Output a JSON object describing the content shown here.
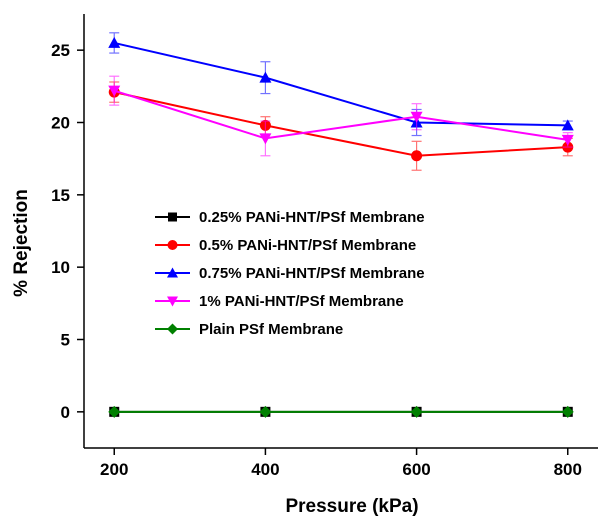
{
  "chart_data": {
    "type": "line",
    "xlabel": "Pressure (kPa)",
    "ylabel": "% Rejection",
    "x": [
      200,
      400,
      600,
      800
    ],
    "xlim": [
      160,
      840
    ],
    "ylim": [
      -2.5,
      27.5
    ],
    "xticks": [
      200,
      400,
      600,
      800
    ],
    "yticks": [
      0,
      5,
      10,
      15,
      20,
      25
    ],
    "grid": false,
    "legend_position": "center-left",
    "series": [
      {
        "name": "0.25% PANi-HNT/PSf Membrane",
        "color": "#000000",
        "marker": "square",
        "values": [
          0,
          0,
          0,
          0
        ],
        "errors": [
          0,
          0,
          0,
          0
        ]
      },
      {
        "name": "0.5% PANi-HNT/PSf Membrane",
        "color": "#ff0000",
        "marker": "circle",
        "values": [
          22.1,
          19.8,
          17.7,
          18.3
        ],
        "errors": [
          0.7,
          0.6,
          1.0,
          0.6
        ]
      },
      {
        "name": "0.75% PANi-HNT/PSf Membrane",
        "color": "#0000ff",
        "marker": "triangle-up",
        "values": [
          25.5,
          23.1,
          20.0,
          19.8
        ],
        "errors": [
          0.7,
          1.1,
          0.9,
          0.3
        ]
      },
      {
        "name": "1% PANi-HNT/PSf Membrane",
        "color": "#ff00ff",
        "marker": "triangle-down",
        "values": [
          22.2,
          18.9,
          20.4,
          18.8
        ],
        "errors": [
          1.0,
          1.2,
          0.9,
          0.5
        ]
      },
      {
        "name": "Plain PSf Membrane",
        "color": "#008000",
        "marker": "diamond",
        "values": [
          0,
          0,
          0,
          0
        ],
        "errors": [
          0,
          0,
          0,
          0
        ]
      }
    ]
  }
}
